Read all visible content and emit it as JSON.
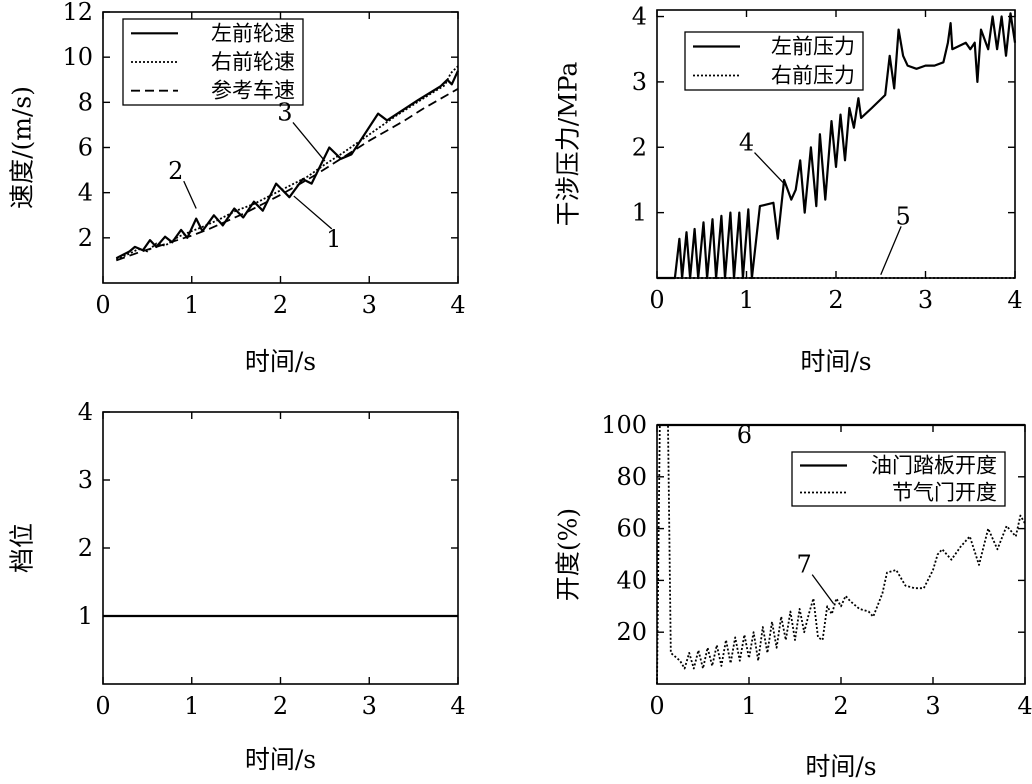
{
  "chart_data": [
    {
      "type": "line",
      "xlabel": "时间/s",
      "ylabel": "速度/(m/s)",
      "xlim": [
        0,
        4
      ],
      "ylim": [
        0,
        12
      ],
      "xticks": [
        "0",
        "1",
        "2",
        "3",
        "4"
      ],
      "yticks": [
        "2",
        "4",
        "6",
        "8",
        "10",
        "12"
      ],
      "grid": false,
      "legend_position": "top-left",
      "series": [
        {
          "name": "左前轮速",
          "style": "solid",
          "points": [
            [
              0.15,
              1.1
            ],
            [
              0.3,
              1.4
            ],
            [
              0.36,
              1.6
            ],
            [
              0.45,
              1.45
            ],
            [
              0.53,
              1.9
            ],
            [
              0.6,
              1.6
            ],
            [
              0.7,
              2.05
            ],
            [
              0.78,
              1.8
            ],
            [
              0.88,
              2.35
            ],
            [
              0.95,
              2.0
            ],
            [
              1.05,
              2.85
            ],
            [
              1.12,
              2.3
            ],
            [
              1.25,
              3.0
            ],
            [
              1.35,
              2.55
            ],
            [
              1.48,
              3.3
            ],
            [
              1.58,
              2.9
            ],
            [
              1.7,
              3.6
            ],
            [
              1.8,
              3.2
            ],
            [
              1.95,
              4.4
            ],
            [
              2.1,
              3.8
            ],
            [
              2.25,
              4.6
            ],
            [
              2.35,
              4.4
            ],
            [
              2.55,
              6.0
            ],
            [
              2.68,
              5.5
            ],
            [
              2.8,
              5.7
            ],
            [
              3.1,
              7.5
            ],
            [
              3.2,
              7.2
            ],
            [
              3.55,
              8.1
            ],
            [
              3.8,
              8.7
            ],
            [
              3.88,
              9.0
            ],
            [
              3.93,
              8.8
            ],
            [
              4.0,
              9.4
            ]
          ]
        },
        {
          "name": "右前轮速",
          "style": "dotted",
          "points": [
            [
              0.15,
              1.05
            ],
            [
              0.3,
              1.3
            ],
            [
              0.4,
              1.5
            ],
            [
              0.5,
              1.4
            ],
            [
              0.6,
              1.75
            ],
            [
              0.7,
              1.65
            ],
            [
              0.85,
              2.05
            ],
            [
              1.0,
              2.3
            ],
            [
              1.1,
              2.45
            ],
            [
              1.3,
              2.8
            ],
            [
              1.5,
              3.2
            ],
            [
              1.7,
              3.5
            ],
            [
              1.9,
              3.9
            ],
            [
              2.1,
              4.3
            ],
            [
              2.3,
              4.7
            ],
            [
              2.5,
              5.25
            ],
            [
              2.7,
              5.75
            ],
            [
              2.9,
              6.3
            ],
            [
              3.1,
              6.85
            ],
            [
              3.3,
              7.4
            ],
            [
              3.5,
              7.9
            ],
            [
              3.7,
              8.4
            ],
            [
              3.85,
              8.75
            ],
            [
              3.92,
              9.3
            ],
            [
              4.0,
              9.6
            ]
          ]
        },
        {
          "name": "参考车速",
          "style": "dashed",
          "points": [
            [
              0.15,
              1.0
            ],
            [
              0.4,
              1.35
            ],
            [
              0.6,
              1.6
            ],
            [
              0.8,
              1.85
            ],
            [
              1.0,
              2.1
            ],
            [
              1.2,
              2.4
            ],
            [
              1.4,
              2.75
            ],
            [
              1.6,
              3.1
            ],
            [
              1.8,
              3.5
            ],
            [
              2.0,
              3.9
            ],
            [
              2.2,
              4.35
            ],
            [
              2.4,
              4.8
            ],
            [
              2.6,
              5.3
            ],
            [
              2.8,
              5.8
            ],
            [
              3.0,
              6.3
            ],
            [
              3.2,
              6.75
            ],
            [
              3.4,
              7.2
            ],
            [
              3.6,
              7.7
            ],
            [
              3.8,
              8.15
            ],
            [
              4.0,
              8.6
            ]
          ]
        }
      ],
      "annotations": [
        {
          "label": "1",
          "text_at": [
            2.6,
            1.6
          ],
          "arrow_to": [
            2.15,
            3.85
          ]
        },
        {
          "label": "2",
          "text_at": [
            0.82,
            4.6
          ],
          "arrow_to": [
            1.05,
            3.3
          ]
        },
        {
          "label": "3",
          "text_at": [
            2.05,
            7.2
          ],
          "arrow_to": [
            2.5,
            5.4
          ]
        }
      ]
    },
    {
      "type": "line",
      "xlabel": "时间/s",
      "ylabel": "干涉压力/MPa",
      "xlim": [
        0,
        4
      ],
      "ylim": [
        0,
        4.1
      ],
      "xticks": [
        "0",
        "1",
        "2",
        "3",
        "4"
      ],
      "yticks": [
        "1",
        "2",
        "3",
        "4"
      ],
      "grid": false,
      "legend_position": "top-left",
      "series": [
        {
          "name": "左前压力",
          "style": "solid",
          "points": [
            [
              0.0,
              0.0
            ],
            [
              0.2,
              0.0
            ],
            [
              0.25,
              0.6
            ],
            [
              0.28,
              0.0
            ],
            [
              0.33,
              0.7
            ],
            [
              0.37,
              0.0
            ],
            [
              0.42,
              0.75
            ],
            [
              0.46,
              0.0
            ],
            [
              0.52,
              0.85
            ],
            [
              0.56,
              0.0
            ],
            [
              0.62,
              0.9
            ],
            [
              0.66,
              0.0
            ],
            [
              0.72,
              0.95
            ],
            [
              0.76,
              0.0
            ],
            [
              0.82,
              1.0
            ],
            [
              0.86,
              0.0
            ],
            [
              0.92,
              1.0
            ],
            [
              0.96,
              0.0
            ],
            [
              1.02,
              1.05
            ],
            [
              1.06,
              0.0
            ],
            [
              1.15,
              1.1
            ],
            [
              1.3,
              1.15
            ],
            [
              1.35,
              0.6
            ],
            [
              1.42,
              1.5
            ],
            [
              1.5,
              1.2
            ],
            [
              1.55,
              1.35
            ],
            [
              1.6,
              1.8
            ],
            [
              1.65,
              1.0
            ],
            [
              1.72,
              2.0
            ],
            [
              1.78,
              1.1
            ],
            [
              1.82,
              2.2
            ],
            [
              1.88,
              1.2
            ],
            [
              1.95,
              2.4
            ],
            [
              2.0,
              1.7
            ],
            [
              2.05,
              2.5
            ],
            [
              2.1,
              1.8
            ],
            [
              2.15,
              2.6
            ],
            [
              2.2,
              2.3
            ],
            [
              2.25,
              2.75
            ],
            [
              2.28,
              2.45
            ],
            [
              2.4,
              2.6
            ],
            [
              2.55,
              2.8
            ],
            [
              2.6,
              3.4
            ],
            [
              2.65,
              2.9
            ],
            [
              2.7,
              3.8
            ],
            [
              2.75,
              3.4
            ],
            [
              2.8,
              3.25
            ],
            [
              2.9,
              3.2
            ],
            [
              3.0,
              3.25
            ],
            [
              3.1,
              3.25
            ],
            [
              3.2,
              3.3
            ],
            [
              3.25,
              3.6
            ],
            [
              3.28,
              3.9
            ],
            [
              3.3,
              3.5
            ],
            [
              3.45,
              3.6
            ],
            [
              3.5,
              3.5
            ],
            [
              3.55,
              3.6
            ],
            [
              3.58,
              3.0
            ],
            [
              3.62,
              3.8
            ],
            [
              3.7,
              3.5
            ],
            [
              3.75,
              4.0
            ],
            [
              3.8,
              3.5
            ],
            [
              3.85,
              4.0
            ],
            [
              3.9,
              3.4
            ],
            [
              3.95,
              4.05
            ],
            [
              4.0,
              3.6
            ]
          ]
        },
        {
          "name": "右前压力",
          "style": "dotted",
          "points": [
            [
              0.0,
              0.0
            ],
            [
              4.0,
              0.0
            ]
          ]
        }
      ],
      "annotations": [
        {
          "label": "4",
          "text_at": [
            1.0,
            1.95
          ],
          "arrow_to": [
            1.45,
            1.4
          ]
        },
        {
          "label": "5",
          "text_at": [
            2.75,
            0.82
          ],
          "arrow_to": [
            2.5,
            0.05
          ]
        }
      ]
    },
    {
      "type": "line",
      "xlabel": "时间/s",
      "ylabel": "档位",
      "xlim": [
        0,
        4
      ],
      "ylim": [
        0,
        4
      ],
      "xticks": [
        "0",
        "1",
        "2",
        "3",
        "4"
      ],
      "yticks": [
        "1",
        "2",
        "3",
        "4"
      ],
      "grid": false,
      "series": [
        {
          "style": "solid",
          "points": [
            [
              0.0,
              1.0
            ],
            [
              4.0,
              1.0
            ]
          ]
        }
      ]
    },
    {
      "type": "line",
      "xlabel": "时间/s",
      "ylabel": "开度(%)",
      "xlim": [
        0,
        4
      ],
      "ylim": [
        0,
        100
      ],
      "xticks": [
        "0",
        "1",
        "2",
        "3",
        "4"
      ],
      "yticks": [
        "20",
        "40",
        "60",
        "80",
        "100"
      ],
      "grid": false,
      "legend_position": "top-right",
      "series": [
        {
          "name": "油门踏板开度",
          "style": "solid",
          "points": [
            [
              0.0,
              100.0
            ],
            [
              4.0,
              100.0
            ]
          ]
        },
        {
          "name": "节气门开度",
          "style": "dotted",
          "points": [
            [
              0.0,
              0.0
            ],
            [
              0.03,
              100.0
            ],
            [
              0.12,
              100.0
            ],
            [
              0.15,
              12.0
            ],
            [
              0.25,
              9.0
            ],
            [
              0.3,
              6.0
            ],
            [
              0.35,
              12.0
            ],
            [
              0.4,
              6.0
            ],
            [
              0.45,
              13.0
            ],
            [
              0.5,
              6.0
            ],
            [
              0.55,
              14.0
            ],
            [
              0.6,
              7.0
            ],
            [
              0.65,
              15.0
            ],
            [
              0.7,
              7.0
            ],
            [
              0.75,
              17.0
            ],
            [
              0.8,
              8.0
            ],
            [
              0.85,
              18.0
            ],
            [
              0.9,
              9.0
            ],
            [
              0.95,
              19.0
            ],
            [
              1.0,
              10.0
            ],
            [
              1.05,
              20.0
            ],
            [
              1.1,
              9.0
            ],
            [
              1.15,
              22.0
            ],
            [
              1.2,
              12.0
            ],
            [
              1.25,
              24.0
            ],
            [
              1.3,
              14.0
            ],
            [
              1.35,
              26.0
            ],
            [
              1.4,
              17.0
            ],
            [
              1.45,
              28.0
            ],
            [
              1.5,
              17.0
            ],
            [
              1.55,
              29.0
            ],
            [
              1.6,
              20.0
            ],
            [
              1.65,
              27.0
            ],
            [
              1.7,
              33.0
            ],
            [
              1.75,
              18.0
            ],
            [
              1.8,
              17.0
            ],
            [
              1.85,
              30.0
            ],
            [
              1.9,
              27.0
            ],
            [
              1.95,
              33.0
            ],
            [
              2.0,
              30.0
            ],
            [
              2.05,
              34.0
            ],
            [
              2.1,
              32.0
            ],
            [
              2.2,
              29.0
            ],
            [
              2.3,
              28.0
            ],
            [
              2.35,
              26.0
            ],
            [
              2.45,
              35.0
            ],
            [
              2.5,
              43.0
            ],
            [
              2.6,
              44.0
            ],
            [
              2.7,
              38.0
            ],
            [
              2.8,
              37.0
            ],
            [
              2.9,
              37.0
            ],
            [
              3.0,
              44.0
            ],
            [
              3.05,
              50.0
            ],
            [
              3.1,
              52.0
            ],
            [
              3.2,
              48.0
            ],
            [
              3.3,
              53.0
            ],
            [
              3.4,
              57.0
            ],
            [
              3.5,
              46.0
            ],
            [
              3.6,
              60.0
            ],
            [
              3.7,
              52.0
            ],
            [
              3.8,
              61.0
            ],
            [
              3.9,
              57.0
            ],
            [
              3.95,
              65.0
            ],
            [
              4.0,
              62.0
            ]
          ]
        }
      ],
      "annotations": [
        {
          "label": "6",
          "text_at": [
            0.95,
            93.0
          ],
          "arrow_to": [
            0.55,
            100.0
          ]
        },
        {
          "label": "7",
          "text_at": [
            1.6,
            43.0
          ],
          "arrow_to": [
            1.92,
            31.0
          ]
        }
      ]
    }
  ]
}
